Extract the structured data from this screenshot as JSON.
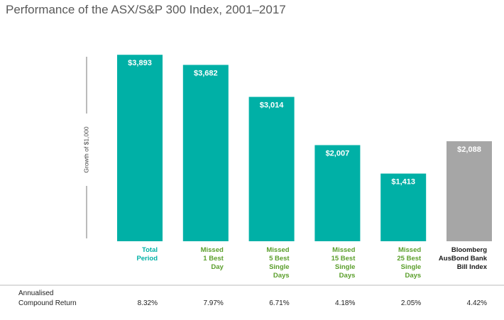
{
  "chart_data": {
    "type": "bar",
    "title": "Performance of the ASX/S&P 300 Index, 2001–2017",
    "y_label": "Growth of $1,000",
    "categories": [
      "Total\nPeriod",
      "Missed\n1 Best\nDay",
      "Missed\n5 Best\nSingle\nDays",
      "Missed\n15 Best\nSingle\nDays",
      "Missed\n25 Best\nSingle\nDays",
      "Bloomberg\nAusBond Bank\nBill Index"
    ],
    "values": [
      3893,
      3682,
      3014,
      2007,
      1413,
      2088
    ],
    "value_labels": [
      "$3,893",
      "$3,682",
      "$3,014",
      "$2,007",
      "$1,413",
      "$2,088"
    ],
    "colors": [
      "#00b0a6",
      "#00b0a6",
      "#00b0a6",
      "#00b0a6",
      "#00b0a6",
      "#a6a6a6"
    ],
    "label_colors": [
      "#00b0a6",
      "#5a9e2a",
      "#5a9e2a",
      "#5a9e2a",
      "#5a9e2a",
      "#1a1a1a"
    ],
    "ylim": [
      0,
      4000
    ]
  },
  "table": {
    "row_label": "Annualised\nCompound Return",
    "cells": [
      "8.32%",
      "7.97%",
      "6.71%",
      "4.18%",
      "2.05%",
      "4.42%"
    ]
  }
}
